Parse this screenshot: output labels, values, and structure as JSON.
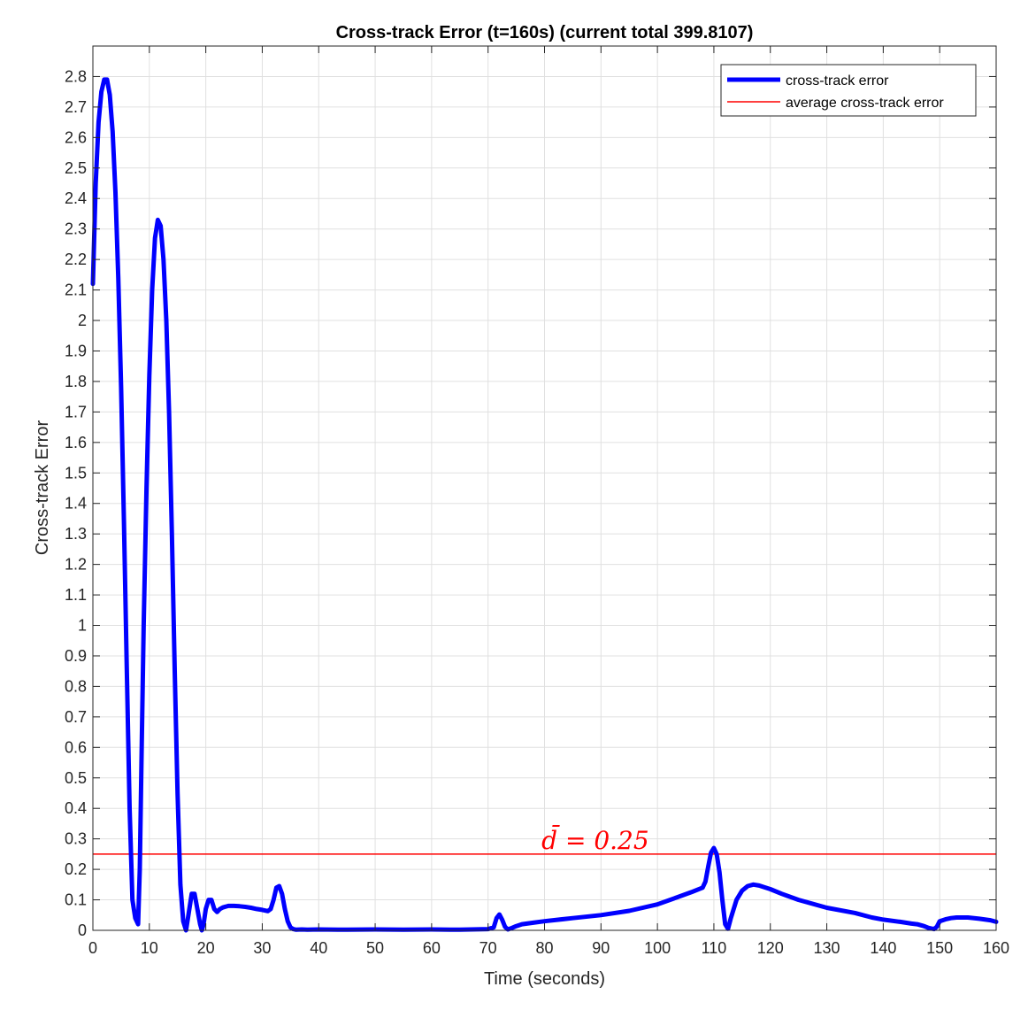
{
  "chart_data": {
    "type": "line",
    "title": "Cross-track Error (t=160s) (current total 399.8107)",
    "xlabel": "Time (seconds)",
    "ylabel": "Cross-track Error",
    "xlim": [
      0,
      160
    ],
    "ylim": [
      0,
      2.9
    ],
    "xticks": [
      0,
      10,
      20,
      30,
      40,
      50,
      60,
      70,
      80,
      90,
      100,
      110,
      120,
      130,
      140,
      150,
      160
    ],
    "yticks": [
      0,
      0.1,
      0.2,
      0.3,
      0.4,
      0.5,
      0.6,
      0.7,
      0.8,
      0.9,
      1,
      1.1,
      1.2,
      1.3,
      1.4,
      1.5,
      1.6,
      1.7,
      1.8,
      1.9,
      2,
      2.1,
      2.2,
      2.3,
      2.4,
      2.5,
      2.6,
      2.7,
      2.8
    ],
    "grid": true,
    "legend_position": "top-right",
    "series": [
      {
        "name": "cross-track error",
        "color": "#0000ff",
        "x": [
          0,
          0.5,
          1,
          1.5,
          2,
          2.5,
          3,
          3.5,
          4,
          4.5,
          5,
          5.5,
          6,
          6.5,
          7,
          7.5,
          8,
          8.3,
          8.6,
          9,
          9.5,
          10,
          10.5,
          11,
          11.5,
          12,
          12.5,
          13,
          13.5,
          14,
          14.5,
          15,
          15.5,
          16,
          16.5,
          17,
          17.5,
          18,
          18.5,
          19,
          19.3,
          19.6,
          20,
          20.5,
          21,
          21.5,
          22,
          22.5,
          23,
          24,
          25,
          26,
          27,
          28,
          29,
          30,
          31,
          31.5,
          32,
          32.5,
          33,
          33.5,
          34,
          34.5,
          35,
          35.5,
          36,
          37,
          38,
          40,
          45,
          50,
          55,
          60,
          65,
          70,
          71,
          71.5,
          72,
          72.5,
          73,
          73.5,
          74,
          75,
          76,
          78,
          80,
          85,
          90,
          95,
          100,
          103,
          106,
          108,
          108.5,
          109,
          109.5,
          110,
          110.5,
          111,
          111.5,
          112,
          112.5,
          113,
          114,
          115,
          116,
          117,
          118,
          120,
          122,
          125,
          130,
          135,
          138,
          140,
          143,
          145,
          146,
          147,
          147.5,
          148,
          148.5,
          149,
          149.5,
          150,
          151,
          152,
          153,
          155,
          157,
          159,
          160
        ],
        "y": [
          2.12,
          2.45,
          2.65,
          2.75,
          2.79,
          2.79,
          2.74,
          2.62,
          2.42,
          2.14,
          1.78,
          1.34,
          0.86,
          0.4,
          0.1,
          0.04,
          0.02,
          0.2,
          0.55,
          1.0,
          1.45,
          1.82,
          2.1,
          2.27,
          2.33,
          2.31,
          2.2,
          2.0,
          1.7,
          1.3,
          0.85,
          0.45,
          0.15,
          0.03,
          0.0,
          0.06,
          0.12,
          0.12,
          0.07,
          0.02,
          0.0,
          0.02,
          0.07,
          0.1,
          0.1,
          0.07,
          0.06,
          0.07,
          0.075,
          0.08,
          0.08,
          0.079,
          0.077,
          0.074,
          0.07,
          0.067,
          0.063,
          0.07,
          0.1,
          0.14,
          0.145,
          0.12,
          0.07,
          0.03,
          0.01,
          0.004,
          0.002,
          0.003,
          0.002,
          0.003,
          0.002,
          0.003,
          0.002,
          0.003,
          0.002,
          0.004,
          0.01,
          0.04,
          0.052,
          0.035,
          0.012,
          0.003,
          0.006,
          0.014,
          0.02,
          0.025,
          0.03,
          0.04,
          0.05,
          0.064,
          0.085,
          0.105,
          0.125,
          0.14,
          0.16,
          0.21,
          0.255,
          0.27,
          0.25,
          0.19,
          0.1,
          0.02,
          0.005,
          0.04,
          0.1,
          0.13,
          0.145,
          0.15,
          0.147,
          0.135,
          0.12,
          0.1,
          0.074,
          0.057,
          0.042,
          0.035,
          0.028,
          0.022,
          0.02,
          0.015,
          0.012,
          0.008,
          0.006,
          0.004,
          0.012,
          0.03,
          0.036,
          0.04,
          0.042,
          0.042,
          0.038,
          0.033,
          0.028
        ]
      },
      {
        "name": "average cross-track error",
        "color": "#ff0000",
        "value": 0.25
      }
    ],
    "annotations": [
      {
        "text": "d̄ = 0.25",
        "x": 89,
        "y": 0.25,
        "color": "#ff0000"
      }
    ]
  }
}
